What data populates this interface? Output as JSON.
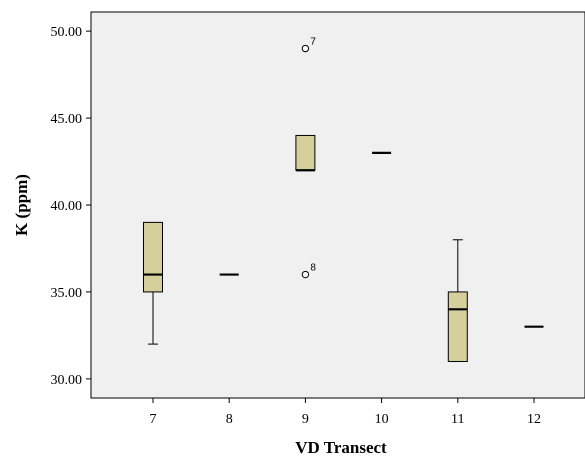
{
  "chart_data": {
    "type": "boxplot",
    "xlabel": "VD Transect",
    "ylabel": "K (ppm)",
    "ylim": [
      28.9,
      51.1
    ],
    "yticks": [
      "30.00",
      "35.00",
      "40.00",
      "45.00",
      "50.00"
    ],
    "categories": [
      "7",
      "8",
      "9",
      "10",
      "11",
      "12"
    ],
    "boxes": [
      {
        "category": "7",
        "whisker_low": 32,
        "q1": 35,
        "median": 36,
        "q3": 39,
        "whisker_high": 39
      },
      {
        "category": "8",
        "whisker_low": 36,
        "q1": 36,
        "median": 36,
        "q3": 36,
        "whisker_high": 36
      },
      {
        "category": "9",
        "whisker_low": 42,
        "q1": 42,
        "median": 42,
        "q3": 44,
        "whisker_high": 44
      },
      {
        "category": "10",
        "whisker_low": 43,
        "q1": 43,
        "median": 43,
        "q3": 43,
        "whisker_high": 43
      },
      {
        "category": "11",
        "whisker_low": 31,
        "q1": 31,
        "median": 34,
        "q3": 35,
        "whisker_high": 38
      },
      {
        "category": "12",
        "whisker_low": 33,
        "q1": 33,
        "median": 33,
        "q3": 33,
        "whisker_high": 33
      }
    ],
    "outliers": [
      {
        "category": "9",
        "value": 49,
        "label": "7"
      },
      {
        "category": "9",
        "value": 36,
        "label": "8"
      }
    ],
    "colors": {
      "plot_background": "#f0f0f0",
      "box_fill": "#d4cf9b",
      "line": "#000000"
    }
  }
}
